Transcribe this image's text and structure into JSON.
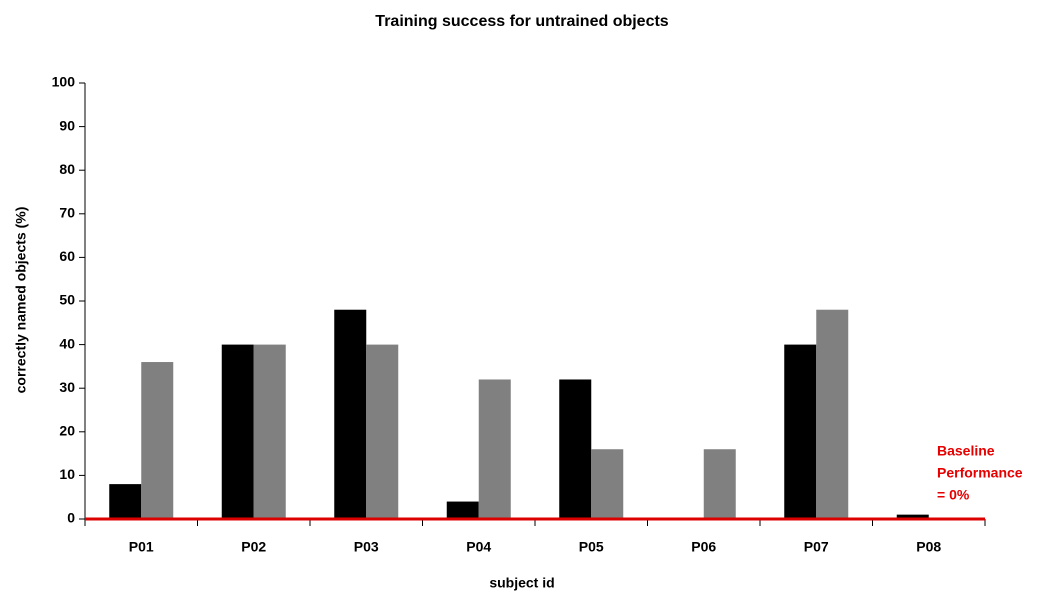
{
  "chart_data": {
    "type": "bar",
    "title": "Training success for untrained objects",
    "x_label": "subject id",
    "y_label": "correctly named objects (%)",
    "categories": [
      "P01",
      "P02",
      "P03",
      "P04",
      "P05",
      "P06",
      "P07",
      "P08"
    ],
    "series": [
      {
        "color": "#000000",
        "values": [
          8,
          40,
          48,
          4,
          32,
          0,
          40,
          1
        ]
      },
      {
        "color": "#808080",
        "values": [
          36,
          40,
          40,
          32,
          16,
          16,
          48,
          0
        ]
      }
    ],
    "ylim": [
      0,
      100
    ],
    "yticks": [
      0,
      10,
      20,
      30,
      40,
      50,
      60,
      70,
      80,
      90,
      100
    ],
    "grid": false,
    "baseline": 0,
    "baseline_color": "#dd0000",
    "annotation": [
      "Baseline",
      "Performance",
      "= 0%"
    ]
  }
}
